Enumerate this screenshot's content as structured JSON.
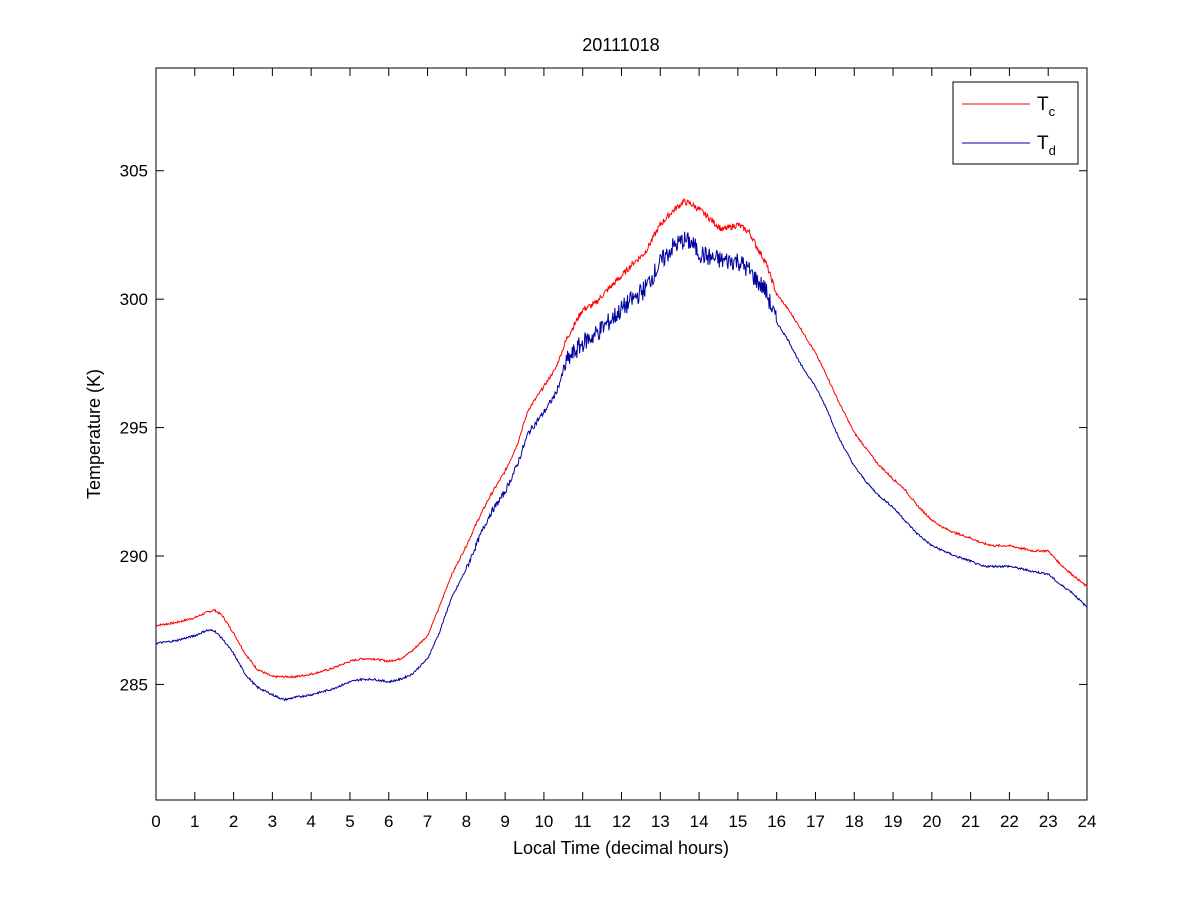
{
  "chart_data": {
    "type": "line",
    "title": "20111018",
    "xlabel": "Local Time (decimal hours)",
    "ylabel": "Temperature (K)",
    "xlim": [
      0,
      24
    ],
    "ylim": [
      280.5,
      309
    ],
    "x_ticks": [
      0,
      1,
      2,
      3,
      4,
      5,
      6,
      7,
      8,
      9,
      10,
      11,
      12,
      13,
      14,
      15,
      16,
      17,
      18,
      19,
      20,
      21,
      22,
      23,
      24
    ],
    "x_tick_labels": [
      "0",
      "1",
      "2",
      "3",
      "4",
      "5",
      "6",
      "7",
      "8",
      "9",
      "10",
      "11",
      "12",
      "13",
      "14",
      "15",
      "16",
      "17",
      "18",
      "19",
      "20",
      "21",
      "22",
      "23",
      "24"
    ],
    "y_ticks": [
      285,
      290,
      295,
      300,
      305
    ],
    "y_tick_labels": [
      "285",
      "290",
      "295",
      "300",
      "305"
    ],
    "grid": false,
    "legend_position": "top-right",
    "series": [
      {
        "name": "T",
        "subscript": "c",
        "color": "#ff0000",
        "x": [
          0,
          0.5,
          1,
          1.3,
          1.5,
          1.7,
          2,
          2.3,
          2.6,
          3,
          3.3,
          3.6,
          4,
          4.5,
          5,
          5.3,
          5.6,
          6,
          6.3,
          6.6,
          7,
          7.3,
          7.6,
          8,
          8.3,
          8.6,
          9,
          9.3,
          9.6,
          10,
          10.3,
          10.6,
          11,
          11.3,
          11.6,
          12,
          12.3,
          12.6,
          13,
          13.3,
          13.6,
          13.8,
          14,
          14.3,
          14.6,
          15,
          15.3,
          15.5,
          15.7,
          16,
          16.3,
          16.6,
          17,
          17.3,
          17.6,
          18,
          18.3,
          18.6,
          19,
          19.3,
          19.6,
          20,
          20.3,
          20.6,
          21,
          21.3,
          21.6,
          22,
          22.3,
          22.6,
          23,
          23.3,
          23.6,
          24
        ],
        "y": [
          287.3,
          287.4,
          287.6,
          287.8,
          287.9,
          287.7,
          287.0,
          286.2,
          285.6,
          285.3,
          285.3,
          285.3,
          285.4,
          285.6,
          285.9,
          286.0,
          286.0,
          285.9,
          286.0,
          286.3,
          286.9,
          288.0,
          289.2,
          290.4,
          291.4,
          292.3,
          293.3,
          294.3,
          295.7,
          296.6,
          297.3,
          298.5,
          299.6,
          299.8,
          300.3,
          300.9,
          301.4,
          301.8,
          302.9,
          303.4,
          303.8,
          303.7,
          303.5,
          303.1,
          302.7,
          302.9,
          302.6,
          302.0,
          301.5,
          300.2,
          299.6,
          298.9,
          297.9,
          297.0,
          296.0,
          294.8,
          294.2,
          293.6,
          293.0,
          292.6,
          292.0,
          291.4,
          291.1,
          290.9,
          290.7,
          290.5,
          290.4,
          290.4,
          290.3,
          290.2,
          290.2,
          289.7,
          289.3,
          288.8
        ]
      },
      {
        "name": "T",
        "subscript": "d",
        "color": "#0000a0",
        "x": [
          0,
          0.5,
          1,
          1.3,
          1.5,
          1.7,
          2,
          2.3,
          2.6,
          3,
          3.3,
          3.6,
          4,
          4.5,
          5,
          5.3,
          5.6,
          6,
          6.3,
          6.6,
          7,
          7.3,
          7.6,
          8,
          8.3,
          8.6,
          9,
          9.3,
          9.6,
          10,
          10.3,
          10.6,
          11,
          11.3,
          11.6,
          12,
          12.3,
          12.6,
          13,
          13.3,
          13.6,
          13.8,
          14,
          14.3,
          14.6,
          15,
          15.3,
          15.5,
          15.7,
          16,
          16.3,
          16.6,
          17,
          17.3,
          17.6,
          18,
          18.3,
          18.6,
          19,
          19.3,
          19.6,
          20,
          20.3,
          20.6,
          21,
          21.3,
          21.6,
          22,
          22.3,
          22.6,
          23,
          23.3,
          23.6,
          24
        ],
        "y": [
          286.6,
          286.7,
          286.9,
          287.1,
          287.1,
          286.8,
          286.2,
          285.4,
          284.9,
          284.6,
          284.4,
          284.5,
          284.6,
          284.8,
          285.1,
          285.2,
          285.2,
          285.1,
          285.2,
          285.4,
          286.0,
          287.0,
          288.3,
          289.5,
          290.6,
          291.6,
          292.5,
          293.5,
          294.8,
          295.6,
          296.3,
          297.6,
          298.3,
          298.6,
          299.0,
          299.6,
          300.0,
          300.4,
          301.4,
          302.0,
          302.3,
          302.2,
          301.8,
          301.6,
          301.5,
          301.5,
          301.1,
          300.7,
          300.4,
          299.1,
          298.4,
          297.5,
          296.6,
          295.7,
          294.6,
          293.5,
          292.9,
          292.4,
          291.9,
          291.4,
          290.9,
          290.4,
          290.2,
          290.0,
          289.8,
          289.6,
          289.6,
          289.6,
          289.5,
          289.4,
          289.3,
          288.9,
          288.6,
          288.0
        ]
      }
    ]
  }
}
